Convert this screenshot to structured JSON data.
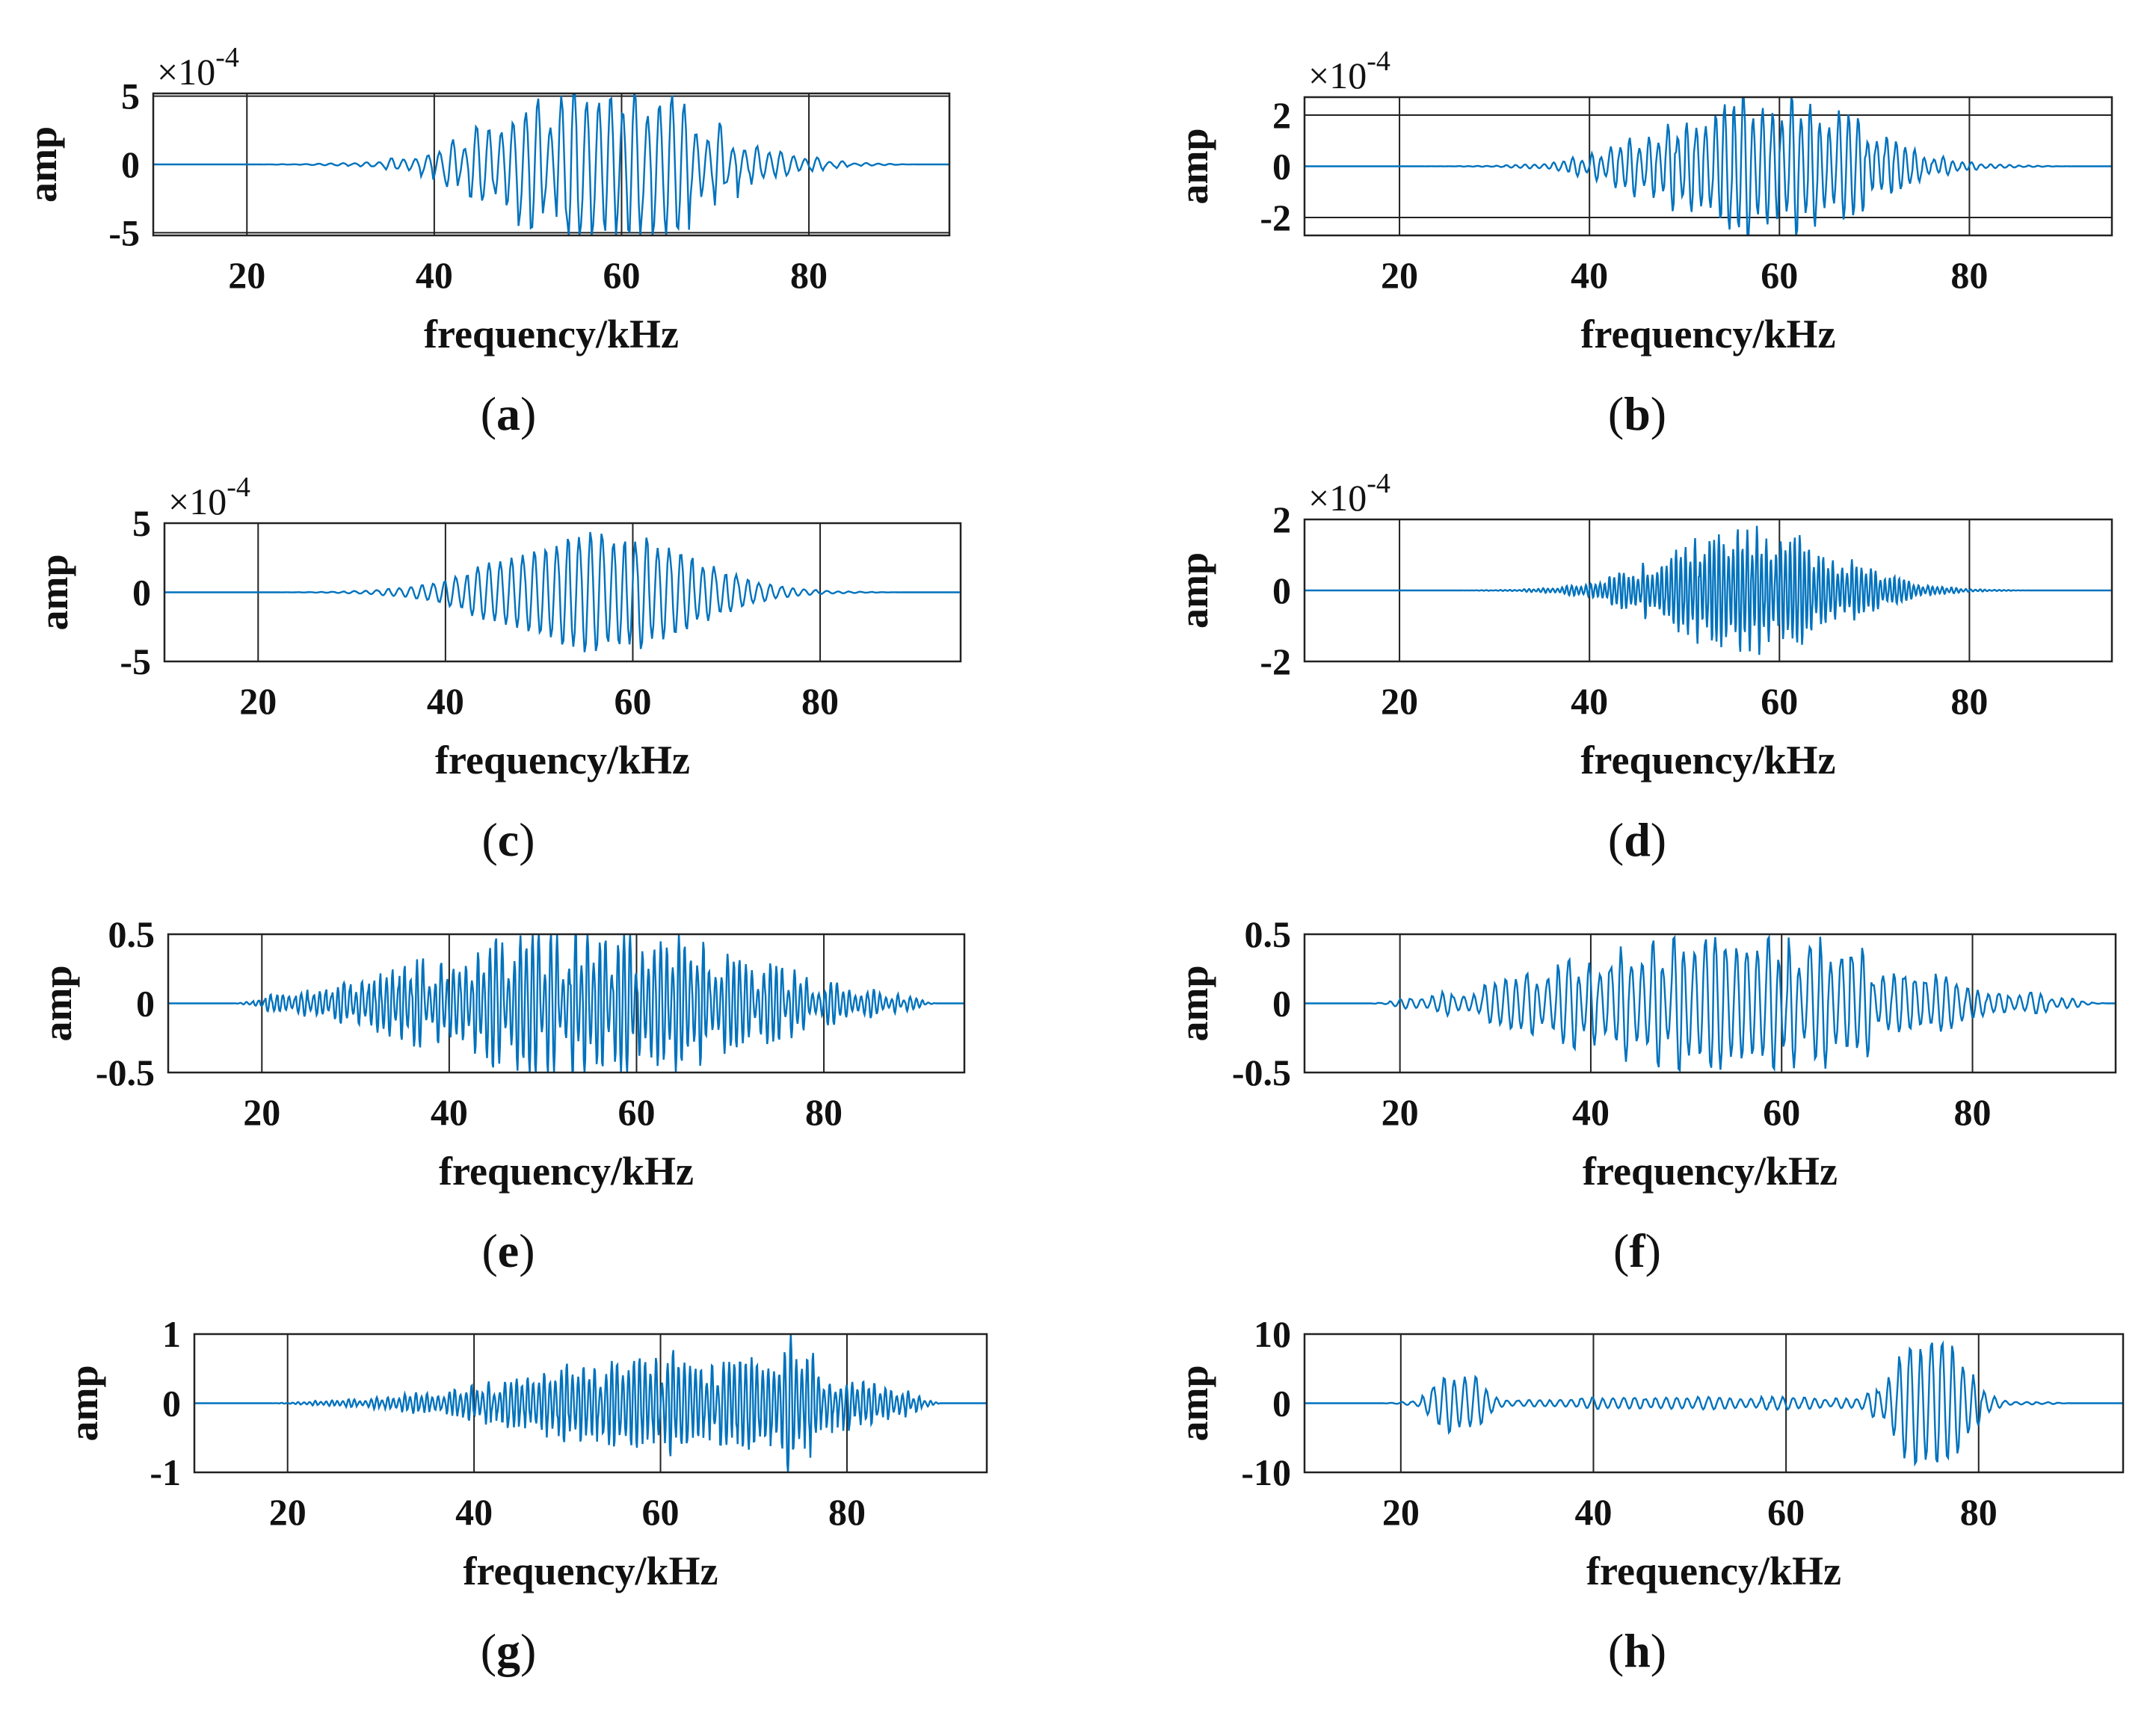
{
  "colors": {
    "line": "#0072bd",
    "axis": "#222222",
    "grid": "#222222",
    "background": "#ffffff"
  },
  "chart_data": [
    {
      "panel": "(a)",
      "panel_letter": "a",
      "type": "line",
      "xlabel": "frequency/kHz",
      "ylabel": "amp",
      "scale_label": "×10",
      "scale_exponent": "-4",
      "xlim": [
        10,
        95
      ],
      "ylim": [
        -5.2,
        5.2
      ],
      "xticks": [
        20,
        40,
        60,
        80
      ],
      "xtick_labels": [
        "20",
        "40",
        "60",
        "80"
      ],
      "yticks": [
        5,
        0,
        -5
      ],
      "ytick_labels": [
        "5",
        "0",
        "-5"
      ],
      "hlines": [
        5,
        -5
      ],
      "signal": {
        "fmin": 18,
        "fmax": 92,
        "center": 58,
        "width": 14,
        "peak": 5.2,
        "period": 1.3,
        "seed": 11,
        "jitter": 0.45
      }
    },
    {
      "panel": "(b)",
      "panel_letter": "b",
      "type": "line",
      "xlabel": "frequency/kHz",
      "ylabel": "amp",
      "scale_label": "×10",
      "scale_exponent": "-4",
      "xlim": [
        10,
        95
      ],
      "ylim": [
        -2.7,
        2.7
      ],
      "xticks": [
        20,
        40,
        60,
        80
      ],
      "xtick_labels": [
        "20",
        "40",
        "60",
        "80"
      ],
      "yticks": [
        2,
        0,
        -2
      ],
      "ytick_labels": [
        "2",
        "0",
        "-2"
      ],
      "hlines": [
        2,
        -2
      ],
      "signal": {
        "fmin": 18,
        "fmax": 92,
        "center": 58,
        "width": 13,
        "peak": 2.7,
        "period": 1.0,
        "seed": 23,
        "jitter": 0.35
      }
    },
    {
      "panel": "(c)",
      "panel_letter": "c",
      "type": "line",
      "xlabel": "frequency/kHz",
      "ylabel": "amp",
      "scale_label": "×10",
      "scale_exponent": "-4",
      "xlim": [
        10,
        95
      ],
      "ylim": [
        -5,
        5
      ],
      "xticks": [
        20,
        40,
        60,
        80
      ],
      "xtick_labels": [
        "20",
        "40",
        "60",
        "80"
      ],
      "yticks": [
        5,
        0,
        -5
      ],
      "ytick_labels": [
        "5",
        "0",
        "-5"
      ],
      "hlines": [],
      "signal": {
        "fmin": 20,
        "fmax": 90,
        "center": 56,
        "width": 13,
        "peak": 4.3,
        "period": 1.2,
        "seed": 37,
        "jitter": 0.15
      }
    },
    {
      "panel": "(d)",
      "panel_letter": "d",
      "type": "line",
      "xlabel": "frequency/kHz",
      "ylabel": "amp",
      "scale_label": "×10",
      "scale_exponent": "-4",
      "xlim": [
        10,
        95
      ],
      "ylim": [
        -2,
        2
      ],
      "xticks": [
        20,
        40,
        60,
        80
      ],
      "xtick_labels": [
        "20",
        "40",
        "60",
        "80"
      ],
      "yticks": [
        2,
        0,
        -2
      ],
      "ytick_labels": [
        "2",
        "0",
        "-2"
      ],
      "hlines": [],
      "signal": {
        "fmin": 24,
        "fmax": 88,
        "center": 57,
        "width": 12,
        "peak": 1.4,
        "period": 0.5,
        "seed": 41,
        "jitter": 0.4
      }
    },
    {
      "panel": "(e)",
      "panel_letter": "e",
      "type": "line",
      "xlabel": "frequency/kHz",
      "ylabel": "amp",
      "scale_label": "",
      "scale_exponent": "",
      "xlim": [
        10,
        95
      ],
      "ylim": [
        -0.5,
        0.5
      ],
      "xticks": [
        20,
        40,
        60,
        80
      ],
      "xtick_labels": [
        "20",
        "40",
        "60",
        "80"
      ],
      "yticks": [
        0.5,
        0,
        -0.5
      ],
      "ytick_labels": [
        "0.5",
        "0",
        "-0.5"
      ],
      "hlines": [],
      "signal": {
        "fmin": 17,
        "fmax": 92,
        "center": 55,
        "width": 24,
        "peak": 0.38,
        "period": 0.65,
        "seed": 53,
        "jitter": 0.55
      }
    },
    {
      "panel": "(f)",
      "panel_letter": "f",
      "type": "line",
      "xlabel": "frequency/kHz",
      "ylabel": "amp",
      "scale_label": "",
      "scale_exponent": "",
      "xlim": [
        10,
        95
      ],
      "ylim": [
        -0.5,
        0.5
      ],
      "xticks": [
        20,
        40,
        60,
        80
      ],
      "xtick_labels": [
        "20",
        "40",
        "60",
        "80"
      ],
      "yticks": [
        0.5,
        0,
        -0.5
      ],
      "ytick_labels": [
        "0.5",
        "0",
        "-0.5"
      ],
      "hlines": [],
      "signal": {
        "fmin": 17,
        "fmax": 94,
        "center": 55,
        "width": 22,
        "peak": 0.42,
        "period": 1.1,
        "seed": 61,
        "jitter": 0.5
      }
    },
    {
      "panel": "(g)",
      "panel_letter": "g",
      "type": "line",
      "xlabel": "frequency/kHz",
      "ylabel": "amp",
      "scale_label": "",
      "scale_exponent": "",
      "xlim": [
        10,
        95
      ],
      "ylim": [
        -1,
        1
      ],
      "xticks": [
        20,
        40,
        60,
        80
      ],
      "xtick_labels": [
        "20",
        "40",
        "60",
        "80"
      ],
      "yticks": [
        1,
        0,
        -1
      ],
      "ytick_labels": [
        "1",
        "0",
        "-1"
      ],
      "hlines": [],
      "signal": {
        "fmin": 18,
        "fmax": 90,
        "center": 62,
        "width": 22,
        "peak": 0.55,
        "period": 0.6,
        "seed": 71,
        "jitter": 0.5,
        "burst_center": 74,
        "burst_width": 4,
        "burst_peak": 0.72
      }
    },
    {
      "panel": "(h)",
      "panel_letter": "h",
      "type": "line",
      "xlabel": "frequency/kHz",
      "ylabel": "amp",
      "scale_label": "",
      "scale_exponent": "",
      "xlim": [
        10,
        95
      ],
      "ylim": [
        -10,
        10
      ],
      "xticks": [
        20,
        40,
        60,
        80
      ],
      "xtick_labels": [
        "20",
        "40",
        "60",
        "80"
      ],
      "yticks": [
        10,
        0,
        -10
      ],
      "ytick_labels": [
        "10",
        "0",
        "-10"
      ],
      "hlines": [],
      "signal": {
        "fmin": 18,
        "fmax": 90,
        "center": 50,
        "width": 30,
        "peak": 0.8,
        "period": 1.1,
        "seed": 83,
        "jitter": 0.3,
        "burst_center": 26,
        "burst_width": 3,
        "burst_peak": 4.5,
        "burst2_center": 75,
        "burst2_width": 4.5,
        "burst2_peak": 10
      }
    }
  ]
}
